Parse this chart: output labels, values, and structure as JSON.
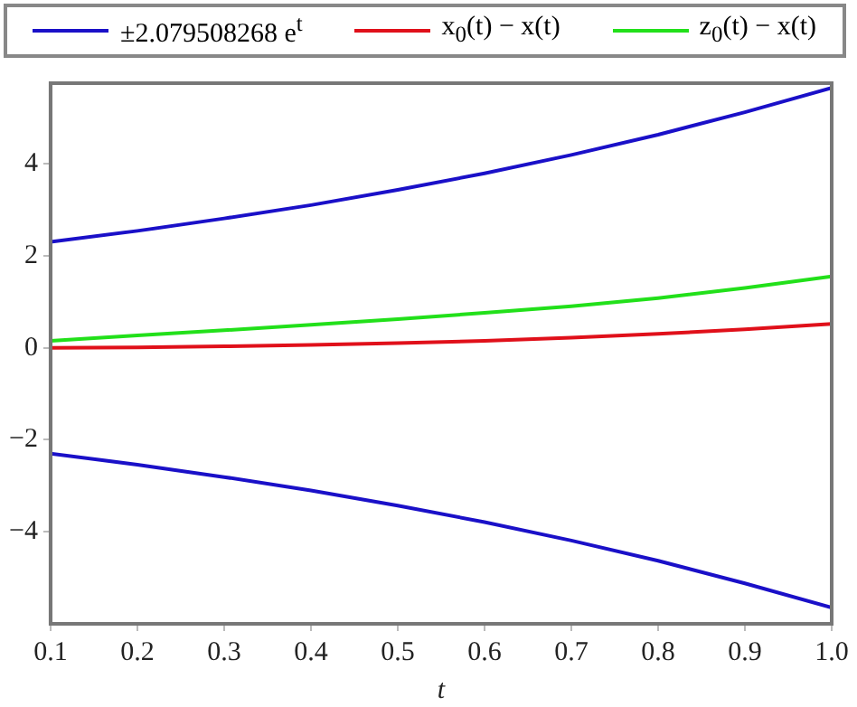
{
  "chart_data": {
    "type": "line",
    "xlabel": "t",
    "x": [
      0.1,
      0.2,
      0.3,
      0.4,
      0.5,
      0.6,
      0.7,
      0.8,
      0.9,
      1.0
    ],
    "series": [
      {
        "name": "±2.079508268 e$^{t}$",
        "color": "#1a10c8",
        "values": [
          2.3,
          2.54,
          2.81,
          3.1,
          3.43,
          3.79,
          4.19,
          4.63,
          5.12,
          5.65
        ]
      },
      {
        "color": "#1a10c8",
        "values": [
          -2.3,
          -2.54,
          -2.81,
          -3.1,
          -3.43,
          -3.79,
          -4.19,
          -4.63,
          -5.12,
          -5.65
        ]
      },
      {
        "name": "x$_{0}$(t) − x(t)",
        "color": "#e0101a",
        "values": [
          0,
          0.01,
          0.03,
          0.06,
          0.1,
          0.15,
          0.22,
          0.3,
          0.4,
          0.52
        ]
      },
      {
        "name": "z$_{0}$(t) − x(t)",
        "color": "#22e01a",
        "values": [
          0.15,
          0.27,
          0.38,
          0.5,
          0.62,
          0.76,
          0.9,
          1.08,
          1.3,
          1.55
        ]
      }
    ],
    "xlim": [
      0.1,
      1.0
    ],
    "xticks": [
      0.1,
      0.2,
      0.3,
      0.4,
      0.5,
      0.6,
      0.7,
      0.8,
      0.9,
      {
        "value": 1.0,
        "label": "1.0"
      }
    ],
    "ylim": [
      -6,
      5.75
    ],
    "yticks": [
      -4,
      -2,
      0,
      2,
      4
    ],
    "legend": "top",
    "grid": false,
    "marker": "none",
    "line_style": "solid"
  }
}
